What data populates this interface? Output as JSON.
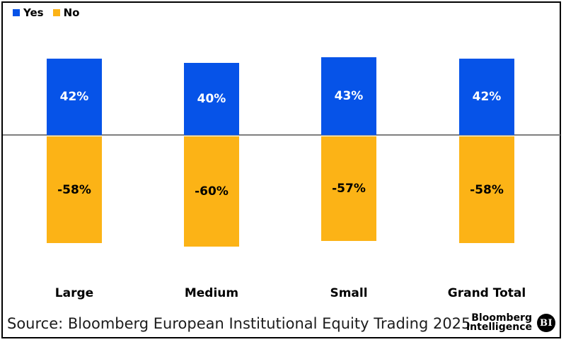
{
  "legend": {
    "items": [
      {
        "label": "Yes",
        "color": "#0653E8"
      },
      {
        "label": "No",
        "color": "#FCB316"
      }
    ]
  },
  "chart_data": {
    "type": "bar",
    "subtype": "diverging-stacked-column",
    "categories": [
      "Large",
      "Medium",
      "Small",
      "Grand Total"
    ],
    "series": [
      {
        "name": "Yes",
        "color": "#0653E8",
        "label_color": "#ffffff",
        "values": [
          42,
          40,
          43,
          42
        ],
        "labels": [
          "42%",
          "40%",
          "43%",
          "42%"
        ]
      },
      {
        "name": "No",
        "color": "#FCB316",
        "label_color": "#000000",
        "values": [
          -58,
          -60,
          -57,
          -58
        ],
        "labels": [
          "-58%",
          "-60%",
          "-57%",
          "-58%"
        ]
      }
    ],
    "title": "",
    "xlabel": "",
    "ylabel": "",
    "ylim": [
      -65,
      45
    ],
    "zero_line": true,
    "grid": false,
    "legend_position": "top-left"
  },
  "footer": {
    "source": "Source: Bloomberg European Institutional Equity Trading 2025",
    "brand_line1": "Bloomberg",
    "brand_line2": "Intelligence",
    "brand_badge": "BI"
  },
  "colors": {
    "zero_line": "#7f7f7f",
    "border": "#000000",
    "background": "#ffffff"
  }
}
